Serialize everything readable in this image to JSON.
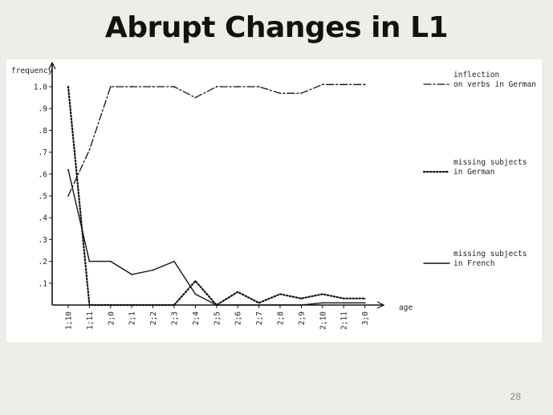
{
  "slide": {
    "title": "Abrupt Changes in L1",
    "page_number": "28"
  },
  "chart_data": {
    "type": "line",
    "ylabel": "frequency",
    "xlabel": "age",
    "ylim": [
      0,
      1.0
    ],
    "y_ticks": [
      ".1",
      ".2",
      ".3",
      ".4",
      ".5",
      ".6",
      ".7",
      ".8",
      ".9",
      "1.0"
    ],
    "categories": [
      "1;10",
      "1;11",
      "2;0",
      "2;1",
      "2;2",
      "2;3",
      "2;4",
      "2;5",
      "2;6",
      "2;7",
      "2;8",
      "2;9",
      "2;10",
      "2;11",
      "3;0"
    ],
    "grid": false,
    "legend_position": "right",
    "series": [
      {
        "name_lines": [
          "inflection",
          "on verbs in German"
        ],
        "style": "dash-dot",
        "values": [
          0.5,
          0.71,
          1.0,
          1.0,
          1.0,
          1.0,
          0.95,
          1.0,
          1.0,
          1.0,
          0.97,
          0.97,
          1.01,
          1.01,
          1.01
        ]
      },
      {
        "name_lines": [
          "missing subjects",
          "in German"
        ],
        "style": "dotted",
        "values": [
          1.0,
          0.0,
          0.0,
          0.0,
          0.0,
          0.0,
          0.11,
          0.0,
          0.06,
          0.01,
          0.05,
          0.03,
          0.05,
          0.03,
          0.03
        ]
      },
      {
        "name_lines": [
          "missing subjects",
          "in French"
        ],
        "style": "solid",
        "values": [
          0.62,
          0.2,
          0.2,
          0.14,
          0.16,
          0.2,
          0.05,
          0.0,
          0.0,
          0.0,
          0.0,
          0.0,
          0.01,
          0.01,
          0.01
        ]
      }
    ]
  }
}
